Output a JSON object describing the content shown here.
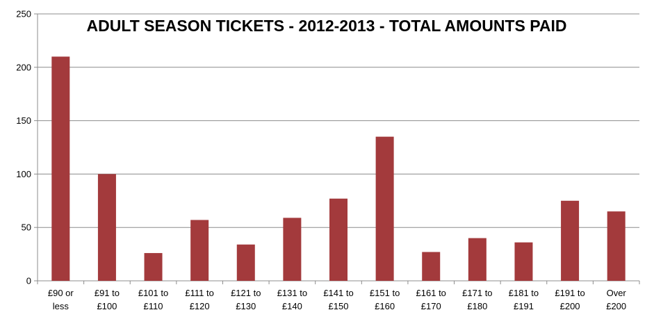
{
  "chart_data": {
    "type": "bar",
    "title": "ADULT SEASON TICKETS - 2012-2013 - TOTAL AMOUNTS PAID",
    "xlabel": "",
    "ylabel": "",
    "categories": [
      [
        "£90 or",
        "less"
      ],
      [
        "£91 to",
        "£100"
      ],
      [
        "£101 to",
        "£110"
      ],
      [
        "£111 to",
        "£120"
      ],
      [
        "£121 to",
        "£130"
      ],
      [
        "£131 to",
        "£140"
      ],
      [
        "£141 to",
        "£150"
      ],
      [
        "£151 to",
        "£160"
      ],
      [
        "£161 to",
        "£170"
      ],
      [
        "£171 to",
        "£180"
      ],
      [
        "£181 to",
        "£191"
      ],
      [
        "£191 to",
        "£200"
      ],
      [
        "Over",
        "£200"
      ]
    ],
    "values": [
      210,
      100,
      26,
      57,
      34,
      59,
      77,
      135,
      27,
      40,
      36,
      75,
      65
    ],
    "ylim": [
      0,
      250
    ],
    "yticks": [
      0,
      50,
      100,
      150,
      200,
      250
    ],
    "grid": true,
    "legend": "none",
    "bar_color": "#A33A3C",
    "grid_color": "#8C8C8C"
  }
}
